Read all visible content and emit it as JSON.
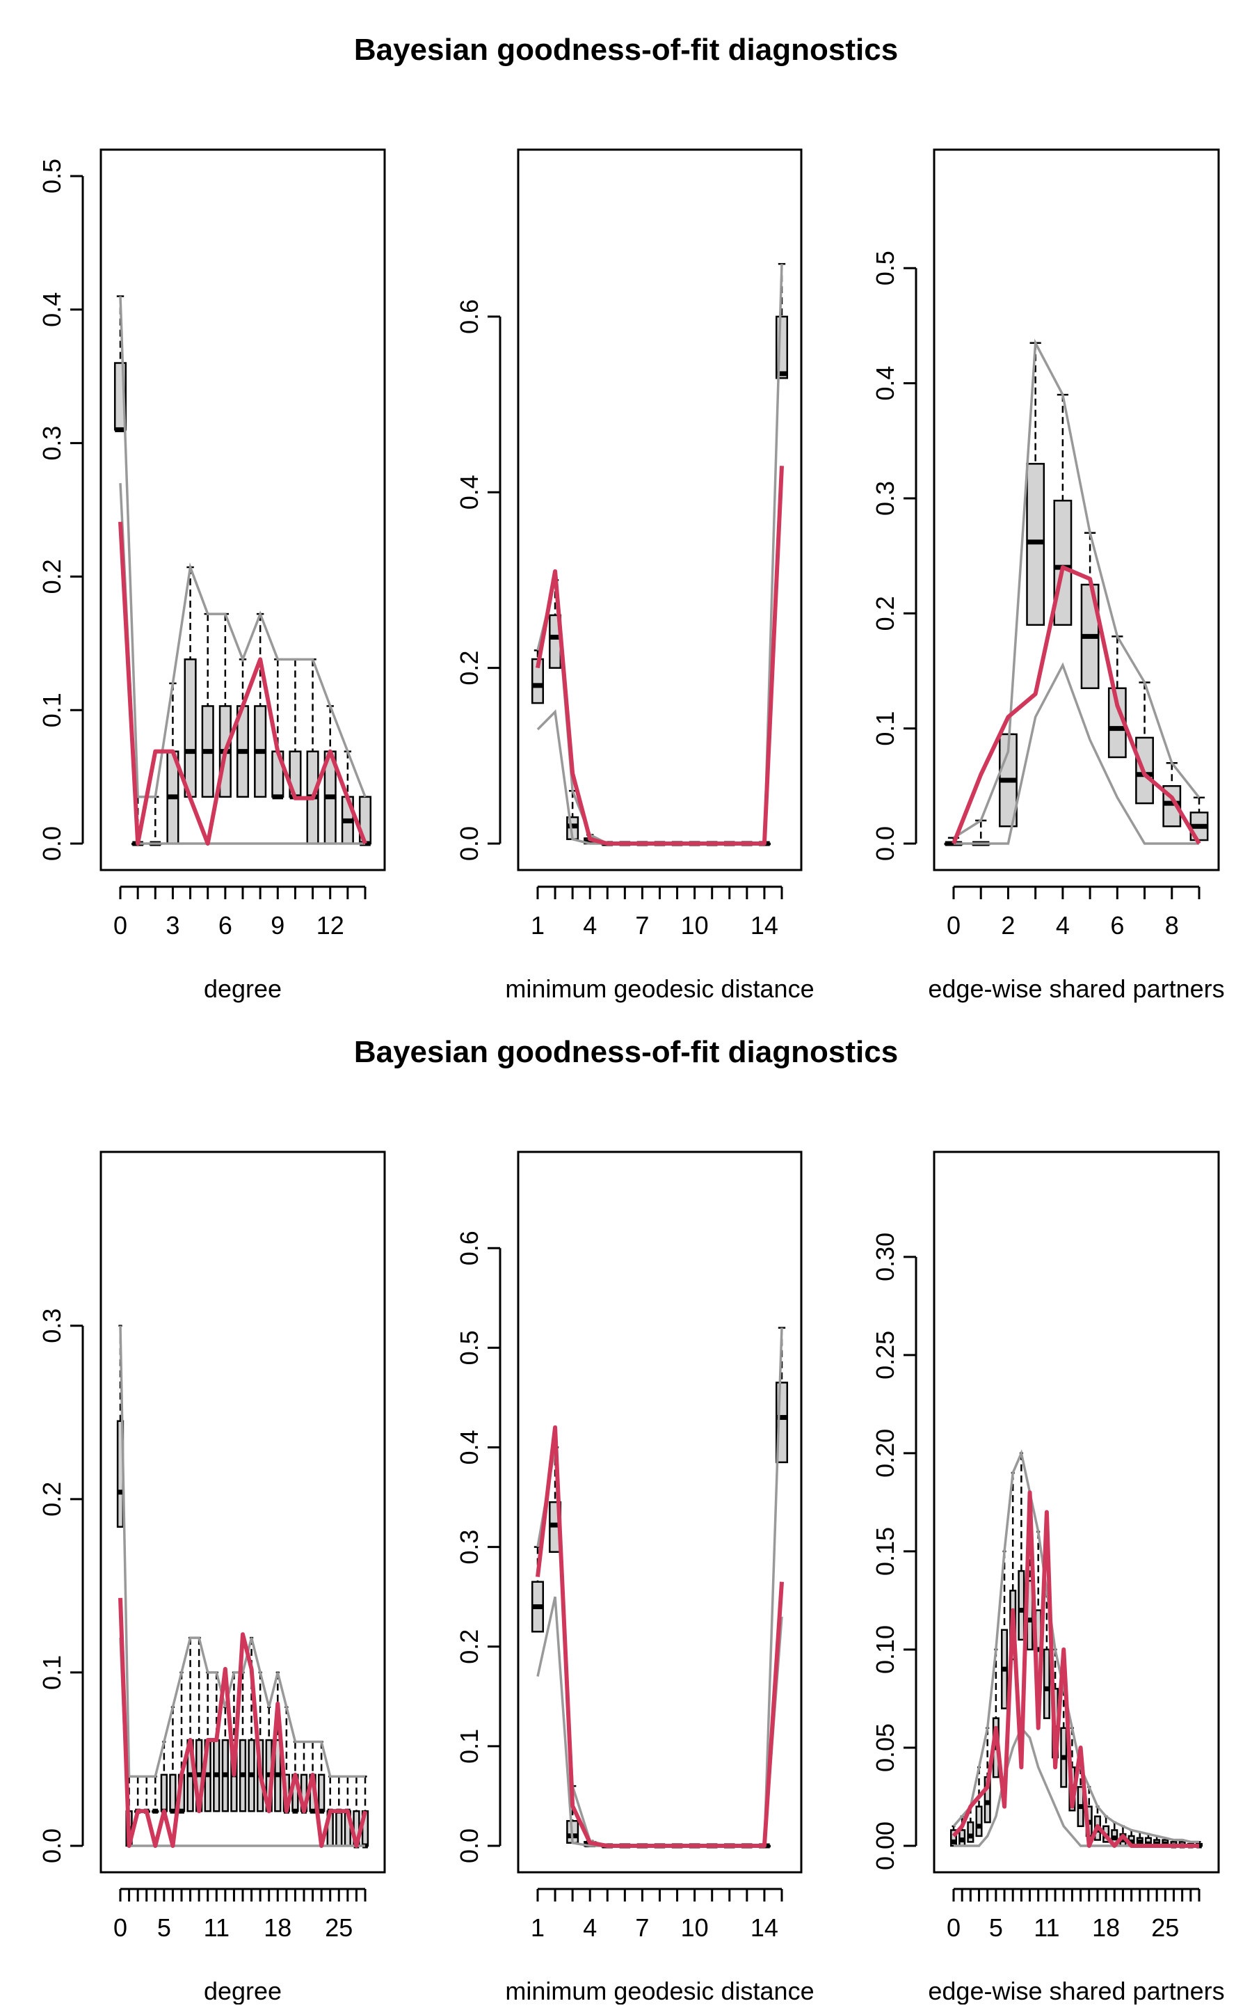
{
  "titles": [
    "Bayesian goodness-of-fit diagnostics",
    "Bayesian goodness-of-fit diagnostics"
  ],
  "colors": {
    "box_fill": "#d3d3d3",
    "observed": "#d0385b",
    "bounds": "#999999",
    "axis": "#000000"
  },
  "chart_data": [
    {
      "type": "box",
      "panel": "top-degree",
      "xlabel": "degree",
      "ylabel": "",
      "x": [
        0,
        1,
        2,
        3,
        4,
        5,
        6,
        7,
        8,
        9,
        10,
        11,
        12,
        13,
        14
      ],
      "xticks": [
        "0",
        "3",
        "6",
        "9",
        "12"
      ],
      "xtick_values": [
        0,
        3,
        6,
        9,
        12
      ],
      "yticks": [
        "0.0",
        "0.1",
        "0.2",
        "0.3",
        "0.4",
        "0.5"
      ],
      "ytick_values": [
        0,
        0.1,
        0.2,
        0.3,
        0.4,
        0.5
      ],
      "ylim": [
        0,
        0.5
      ],
      "boxes": [
        [
          0.31,
          0.36,
          0.31
        ],
        [
          0,
          0,
          0
        ],
        [
          0,
          0,
          0
        ],
        [
          0,
          0.069,
          0.035
        ],
        [
          0.035,
          0.138,
          0.069
        ],
        [
          0.035,
          0.103,
          0.069
        ],
        [
          0.035,
          0.103,
          0.069
        ],
        [
          0.035,
          0.103,
          0.069
        ],
        [
          0.035,
          0.103,
          0.069
        ],
        [
          0.035,
          0.069,
          0.035
        ],
        [
          0.035,
          0.069,
          0.035
        ],
        [
          0,
          0.069,
          0.035
        ],
        [
          0,
          0.069,
          0.035
        ],
        [
          0,
          0.035,
          0.017
        ],
        [
          0,
          0.035,
          0
        ]
      ],
      "observed": [
        0.241,
        0,
        0.069,
        0.069,
        0.034,
        0,
        0.069,
        0.103,
        0.138,
        0.069,
        0.034,
        0.034,
        0.069,
        0.034,
        0
      ],
      "upper": [
        0.41,
        0.035,
        0.035,
        0.12,
        0.207,
        0.172,
        0.172,
        0.138,
        0.172,
        0.138,
        0.138,
        0.138,
        0.103,
        0.069,
        0.035
      ],
      "lower": [
        0.27,
        0,
        0,
        0,
        0,
        0,
        0,
        0,
        0,
        0,
        0,
        0,
        0,
        0,
        0
      ]
    },
    {
      "type": "box",
      "panel": "top-geodesic",
      "xlabel": "minimum geodesic distance",
      "ylabel": "",
      "x": [
        1,
        2,
        3,
        4,
        5,
        6,
        7,
        8,
        9,
        10,
        11,
        12,
        13,
        14,
        15
      ],
      "xticks": [
        "1",
        "4",
        "7",
        "10",
        "14"
      ],
      "xtick_values": [
        1,
        4,
        7,
        10,
        14
      ],
      "yticks": [
        "0.0",
        "0.2",
        "0.4",
        "0.6"
      ],
      "ytick_values": [
        0,
        0.2,
        0.4,
        0.6
      ],
      "ylim": [
        0,
        0.76
      ],
      "boxes": [
        [
          0.16,
          0.21,
          0.18
        ],
        [
          0.2,
          0.26,
          0.235
        ],
        [
          0.005,
          0.03,
          0.02
        ],
        [
          0,
          0.006,
          0.002
        ],
        [
          0,
          0,
          0
        ],
        [
          0,
          0,
          0
        ],
        [
          0,
          0,
          0
        ],
        [
          0,
          0,
          0
        ],
        [
          0,
          0,
          0
        ],
        [
          0,
          0,
          0
        ],
        [
          0,
          0,
          0
        ],
        [
          0,
          0,
          0
        ],
        [
          0,
          0,
          0
        ],
        [
          0,
          0,
          0
        ],
        [
          0.53,
          0.6,
          0.535
        ]
      ],
      "observed": [
        0.2,
        0.31,
        0.08,
        0.005,
        0,
        0,
        0,
        0,
        0,
        0,
        0,
        0,
        0,
        0,
        0.43
      ],
      "upper": [
        0.22,
        0.3,
        0.06,
        0.01,
        0,
        0,
        0,
        0,
        0,
        0,
        0,
        0,
        0,
        0,
        0.66
      ],
      "lower": [
        0.13,
        0.15,
        0.005,
        0,
        0,
        0,
        0,
        0,
        0,
        0,
        0,
        0,
        0,
        0,
        0.43
      ]
    },
    {
      "type": "box",
      "panel": "top-esp",
      "xlabel": "edge-wise shared partners",
      "ylabel": "",
      "x": [
        0,
        1,
        2,
        3,
        4,
        5,
        6,
        7,
        8,
        9
      ],
      "xticks": [
        "0",
        "2",
        "4",
        "6",
        "8"
      ],
      "xtick_values": [
        0,
        2,
        4,
        6,
        8
      ],
      "yticks": [
        "0.0",
        "0.1",
        "0.2",
        "0.3",
        "0.4",
        "0.5"
      ],
      "ytick_values": [
        0,
        0.1,
        0.2,
        0.3,
        0.4,
        0.5
      ],
      "ylim": [
        0,
        0.58
      ],
      "boxes": [
        [
          0,
          0,
          0
        ],
        [
          0,
          0,
          0
        ],
        [
          0.015,
          0.095,
          0.055
        ],
        [
          0.19,
          0.33,
          0.262
        ],
        [
          0.19,
          0.298,
          0.24
        ],
        [
          0.135,
          0.225,
          0.18
        ],
        [
          0.075,
          0.135,
          0.1
        ],
        [
          0.035,
          0.092,
          0.06
        ],
        [
          0.015,
          0.05,
          0.035
        ],
        [
          0.003,
          0.027,
          0.015
        ]
      ],
      "observed": [
        0,
        0.06,
        0.11,
        0.13,
        0.24,
        0.23,
        0.12,
        0.06,
        0.04,
        0
      ],
      "upper": [
        0.005,
        0.02,
        0.08,
        0.435,
        0.39,
        0.27,
        0.18,
        0.14,
        0.07,
        0.04
      ],
      "lower": [
        0,
        0,
        0,
        0.11,
        0.155,
        0.09,
        0.04,
        0,
        0,
        0
      ]
    },
    {
      "type": "box",
      "panel": "bottom-degree",
      "xlabel": "degree",
      "ylabel": "",
      "x": [
        0,
        1,
        2,
        3,
        4,
        5,
        6,
        7,
        8,
        9,
        10,
        11,
        12,
        13,
        14,
        15,
        16,
        17,
        18,
        19,
        20,
        21,
        22,
        23,
        24,
        25,
        26,
        27,
        28
      ],
      "xticks": [
        "0",
        "5",
        "11",
        "18",
        "25"
      ],
      "xtick_values": [
        0,
        5,
        11,
        18,
        25
      ],
      "yticks": [
        "0.0",
        "0.1",
        "0.2",
        "0.3"
      ],
      "ytick_values": [
        0,
        0.1,
        0.2,
        0.3
      ],
      "ylim": [
        0,
        0.385
      ],
      "boxes": [
        [
          0.184,
          0.245,
          0.204
        ],
        [
          0,
          0.02,
          0.01
        ],
        [
          0.02,
          0.02,
          0.02
        ],
        [
          0.02,
          0.02,
          0.02
        ],
        [
          0.02,
          0.02,
          0.02
        ],
        [
          0.02,
          0.041,
          0.02
        ],
        [
          0.02,
          0.041,
          0.02
        ],
        [
          0.02,
          0.041,
          0.02
        ],
        [
          0.02,
          0.061,
          0.041
        ],
        [
          0.02,
          0.061,
          0.041
        ],
        [
          0.02,
          0.061,
          0.041
        ],
        [
          0.02,
          0.061,
          0.041
        ],
        [
          0.02,
          0.061,
          0.041
        ],
        [
          0.02,
          0.061,
          0.041
        ],
        [
          0.02,
          0.061,
          0.041
        ],
        [
          0.02,
          0.061,
          0.041
        ],
        [
          0.02,
          0.061,
          0.041
        ],
        [
          0.02,
          0.061,
          0.041
        ],
        [
          0.02,
          0.061,
          0.041
        ],
        [
          0.02,
          0.041,
          0.02
        ],
        [
          0.02,
          0.041,
          0.02
        ],
        [
          0.02,
          0.041,
          0.02
        ],
        [
          0.02,
          0.041,
          0.02
        ],
        [
          0.02,
          0.041,
          0.02
        ],
        [
          0,
          0.02,
          0.02
        ],
        [
          0,
          0.02,
          0.02
        ],
        [
          0,
          0.02,
          0.02
        ],
        [
          0,
          0.02,
          0
        ],
        [
          0,
          0.02,
          0
        ]
      ],
      "observed": [
        0.143,
        0,
        0.02,
        0.02,
        0,
        0.02,
        0,
        0.041,
        0.061,
        0.02,
        0.061,
        0.061,
        0.102,
        0.041,
        0.122,
        0.102,
        0.041,
        0.02,
        0.082,
        0.02,
        0.041,
        0.02,
        0.041,
        0,
        0.02,
        0.02,
        0.02,
        0,
        0.02
      ],
      "upper": [
        0.3,
        0.04,
        0.04,
        0.04,
        0.04,
        0.06,
        0.08,
        0.1,
        0.12,
        0.12,
        0.1,
        0.1,
        0.08,
        0.1,
        0.1,
        0.12,
        0.1,
        0.08,
        0.1,
        0.08,
        0.06,
        0.06,
        0.06,
        0.06,
        0.04,
        0.04,
        0.04,
        0.04,
        0.04
      ],
      "lower": [
        0.12,
        0,
        0,
        0,
        0,
        0,
        0,
        0,
        0,
        0,
        0,
        0,
        0,
        0,
        0,
        0,
        0,
        0,
        0,
        0,
        0,
        0,
        0,
        0,
        0,
        0,
        0,
        0,
        0
      ]
    },
    {
      "type": "box",
      "panel": "bottom-geodesic",
      "xlabel": "minimum geodesic distance",
      "ylabel": "",
      "x": [
        1,
        2,
        3,
        4,
        5,
        6,
        7,
        8,
        9,
        10,
        11,
        12,
        13,
        14,
        15
      ],
      "xticks": [
        "1",
        "4",
        "7",
        "10",
        "14"
      ],
      "xtick_values": [
        1,
        4,
        7,
        10,
        14
      ],
      "yticks": [
        "0.0",
        "0.1",
        "0.2",
        "0.3",
        "0.4",
        "0.5",
        "0.6"
      ],
      "ytick_values": [
        0,
        0.1,
        0.2,
        0.3,
        0.4,
        0.5,
        0.6
      ],
      "ylim": [
        0,
        0.67
      ],
      "boxes": [
        [
          0.215,
          0.265,
          0.24
        ],
        [
          0.295,
          0.345,
          0.322
        ],
        [
          0.003,
          0.025,
          0.01
        ],
        [
          0,
          0.004,
          0.001
        ],
        [
          0,
          0,
          0
        ],
        [
          0,
          0,
          0
        ],
        [
          0,
          0,
          0
        ],
        [
          0,
          0,
          0
        ],
        [
          0,
          0,
          0
        ],
        [
          0,
          0,
          0
        ],
        [
          0,
          0,
          0
        ],
        [
          0,
          0,
          0
        ],
        [
          0,
          0,
          0
        ],
        [
          0,
          0,
          0
        ],
        [
          0.385,
          0.465,
          0.43
        ]
      ],
      "observed": [
        0.27,
        0.42,
        0.04,
        0.003,
        0,
        0,
        0,
        0,
        0,
        0,
        0,
        0,
        0,
        0,
        0.265
      ],
      "upper": [
        0.3,
        0.4,
        0.06,
        0.005,
        0,
        0,
        0,
        0,
        0,
        0,
        0,
        0,
        0,
        0,
        0.52
      ],
      "lower": [
        0.17,
        0.25,
        0.003,
        0,
        0,
        0,
        0,
        0,
        0,
        0,
        0,
        0,
        0,
        0,
        0.23
      ]
    },
    {
      "type": "box",
      "panel": "bottom-esp",
      "xlabel": "edge-wise shared partners",
      "ylabel": "",
      "x": [
        0,
        1,
        2,
        3,
        4,
        5,
        6,
        7,
        8,
        9,
        10,
        11,
        12,
        13,
        14,
        15,
        16,
        17,
        18,
        19,
        20,
        21,
        22,
        23,
        24,
        25,
        26,
        27,
        28,
        29
      ],
      "xticks": [
        "0",
        "5",
        "11",
        "18",
        "25"
      ],
      "xtick_values": [
        0,
        5,
        11,
        18,
        25
      ],
      "yticks": [
        "0.00",
        "0.05",
        "0.10",
        "0.15",
        "0.20",
        "0.25",
        "0.30"
      ],
      "ytick_values": [
        0,
        0.05,
        0.1,
        0.15,
        0.2,
        0.25,
        0.3
      ],
      "ylim": [
        0,
        0.34
      ],
      "boxes": [
        [
          0,
          0.008,
          0.002
        ],
        [
          0,
          0.008,
          0.003
        ],
        [
          0.002,
          0.012,
          0.005
        ],
        [
          0.005,
          0.02,
          0.01
        ],
        [
          0.012,
          0.035,
          0.022
        ],
        [
          0.035,
          0.065,
          0.05
        ],
        [
          0.07,
          0.11,
          0.09
        ],
        [
          0.095,
          0.13,
          0.11
        ],
        [
          0.105,
          0.14,
          0.12
        ],
        [
          0.1,
          0.135,
          0.115
        ],
        [
          0.085,
          0.12,
          0.1
        ],
        [
          0.065,
          0.1,
          0.08
        ],
        [
          0.045,
          0.08,
          0.06
        ],
        [
          0.03,
          0.06,
          0.045
        ],
        [
          0.018,
          0.04,
          0.03
        ],
        [
          0.01,
          0.03,
          0.02
        ],
        [
          0.005,
          0.02,
          0.012
        ],
        [
          0.003,
          0.015,
          0.008
        ],
        [
          0.002,
          0.01,
          0.005
        ],
        [
          0.001,
          0.008,
          0.004
        ],
        [
          0,
          0.006,
          0.003
        ],
        [
          0,
          0.005,
          0.002
        ],
        [
          0,
          0.004,
          0.002
        ],
        [
          0,
          0.004,
          0.001
        ],
        [
          0,
          0.003,
          0.001
        ],
        [
          0,
          0.003,
          0.001
        ],
        [
          0,
          0.002,
          0
        ],
        [
          0,
          0.002,
          0
        ],
        [
          0,
          0.001,
          0
        ],
        [
          0,
          0.001,
          0
        ]
      ],
      "observed": [
        0.005,
        0.01,
        0.02,
        0.025,
        0.03,
        0.06,
        0.02,
        0.12,
        0.04,
        0.18,
        0.06,
        0.17,
        0.04,
        0.1,
        0.02,
        0.05,
        0,
        0.01,
        0.005,
        0,
        0.005,
        0,
        0,
        0,
        0,
        0,
        0,
        0,
        0,
        0
      ],
      "upper": [
        0.01,
        0.015,
        0.02,
        0.04,
        0.06,
        0.1,
        0.15,
        0.19,
        0.2,
        0.18,
        0.16,
        0.13,
        0.1,
        0.08,
        0.06,
        0.04,
        0.03,
        0.02,
        0.015,
        0.012,
        0.01,
        0.008,
        0.007,
        0.006,
        0.005,
        0.004,
        0.003,
        0.003,
        0.002,
        0.002
      ],
      "lower": [
        0,
        0,
        0,
        0,
        0.005,
        0.015,
        0.035,
        0.05,
        0.06,
        0.055,
        0.04,
        0.03,
        0.02,
        0.01,
        0.005,
        0,
        0,
        0,
        0,
        0,
        0,
        0,
        0,
        0,
        0,
        0,
        0,
        0,
        0,
        0
      ]
    }
  ]
}
